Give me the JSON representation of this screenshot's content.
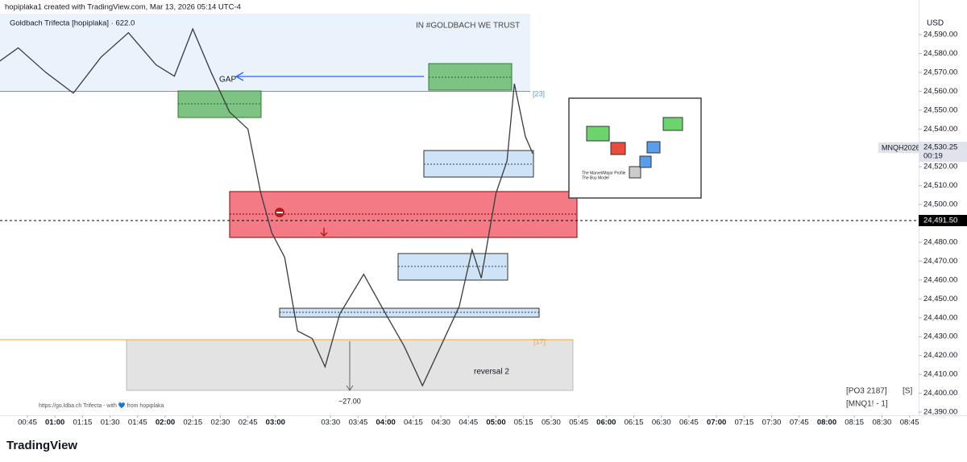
{
  "header": {
    "credit": "hopiplaka1 created with TradingView.com, Mar 13, 2026 05:14 UTC-4",
    "footer_logo": "TradingView"
  },
  "chart_data": {
    "type": "line",
    "title": "Goldbach Trifecta [hopiplaka] · 622.0",
    "watermark": "IN #GOLDBACH WE TRUST",
    "currency": "USD",
    "symbol": "MNQH2026",
    "countdown": "00:19",
    "last_price": {
      "value": 24530.25,
      "label": "24,530.25"
    },
    "marker_price": {
      "value": 24491.5,
      "label": "24,491.50"
    },
    "annotations": {
      "gap": "GAP",
      "gap_count": "[23]",
      "low_count": "[17]",
      "reversal": "reversal 2",
      "measure": "−27.00",
      "link": "https://go.ldba.ch Trifecta - with 💙 from hopiplaka",
      "po3": "[PO3 2187]",
      "s": "[S]",
      "mnq": "[MNQ1! - 1]",
      "inset_title": "The Marvel/Major Profile",
      "inset_sub": "The Buy Model"
    },
    "grid": false,
    "xlim": [
      30.1,
      530
    ],
    "ylim": [
      24388.3,
      24601.1
    ],
    "xticks": [
      {
        "value": 45,
        "label": "00:45"
      },
      {
        "value": 60,
        "label": "01:00"
      },
      {
        "value": 75,
        "label": "01:15"
      },
      {
        "value": 90,
        "label": "01:30"
      },
      {
        "value": 105,
        "label": "01:45"
      },
      {
        "value": 120,
        "label": "02:00"
      },
      {
        "value": 135,
        "label": "02:15"
      },
      {
        "value": 150,
        "label": "02:30"
      },
      {
        "value": 165,
        "label": "02:45"
      },
      {
        "value": 180,
        "label": "03:00"
      },
      {
        "value": 210,
        "label": "03:30"
      },
      {
        "value": 225,
        "label": "03:45"
      },
      {
        "value": 240,
        "label": "04:00"
      },
      {
        "value": 255,
        "label": "04:15"
      },
      {
        "value": 270,
        "label": "04:30"
      },
      {
        "value": 285,
        "label": "04:45"
      },
      {
        "value": 300,
        "label": "05:00"
      },
      {
        "value": 315,
        "label": "05:15"
      },
      {
        "value": 330,
        "label": "05:30"
      },
      {
        "value": 345,
        "label": "05:45"
      },
      {
        "value": 360,
        "label": "06:00"
      },
      {
        "value": 375,
        "label": "06:15"
      },
      {
        "value": 390,
        "label": "06:30"
      },
      {
        "value": 405,
        "label": "06:45"
      },
      {
        "value": 420,
        "label": "07:00"
      },
      {
        "value": 435,
        "label": "07:15"
      },
      {
        "value": 450,
        "label": "07:30"
      },
      {
        "value": 465,
        "label": "07:45"
      },
      {
        "value": 480,
        "label": "08:00"
      },
      {
        "value": 495,
        "label": "08:15"
      },
      {
        "value": 510,
        "label": "08:30"
      },
      {
        "value": 525,
        "label": "08:45"
      }
    ],
    "yticks": [
      {
        "value": 24590,
        "label": "24,590.00"
      },
      {
        "value": 24580,
        "label": "24,580.00"
      },
      {
        "value": 24570,
        "label": "24,570.00"
      },
      {
        "value": 24560,
        "label": "24,560.00"
      },
      {
        "value": 24550,
        "label": "24,550.00"
      },
      {
        "value": 24540,
        "label": "24,540.00"
      },
      {
        "value": 24520,
        "label": "24,520.00"
      },
      {
        "value": 24510,
        "label": "24,510.00"
      },
      {
        "value": 24500,
        "label": "24,500.00"
      },
      {
        "value": 24480,
        "label": "24,480.00"
      },
      {
        "value": 24470,
        "label": "24,470.00"
      },
      {
        "value": 24460,
        "label": "24,460.00"
      },
      {
        "value": 24450,
        "label": "24,450.00"
      },
      {
        "value": 24440,
        "label": "24,440.00"
      },
      {
        "value": 24430,
        "label": "24,430.00"
      },
      {
        "value": 24420,
        "label": "24,420.00"
      },
      {
        "value": 24410,
        "label": "24,410.00"
      },
      {
        "value": 24400,
        "label": "24,400.00"
      },
      {
        "value": 24390,
        "label": "24,390.00"
      }
    ],
    "series": [
      {
        "name": "MNQH2026",
        "color": "#3a3a3a",
        "x": [
          30,
          40,
          55,
          70,
          85,
          100,
          115,
          125,
          135,
          145,
          155,
          165,
          172,
          178,
          185,
          192,
          200,
          207,
          215,
          228,
          240,
          250,
          260,
          270,
          280,
          287,
          292,
          300,
          306,
          310,
          316,
          320
        ],
        "values": [
          24576,
          24583,
          24570,
          24559,
          24578,
          24591,
          24574,
          24568,
          24593,
          24570,
          24549,
          24540,
          24506,
          24485,
          24472,
          24433,
          24429,
          24414,
          24442,
          24463,
          24442,
          24425,
          24404,
          24425,
          24446,
          24476,
          24461,
          24506,
          24523,
          24564,
          24536,
          24527
        ]
      }
    ]
  }
}
